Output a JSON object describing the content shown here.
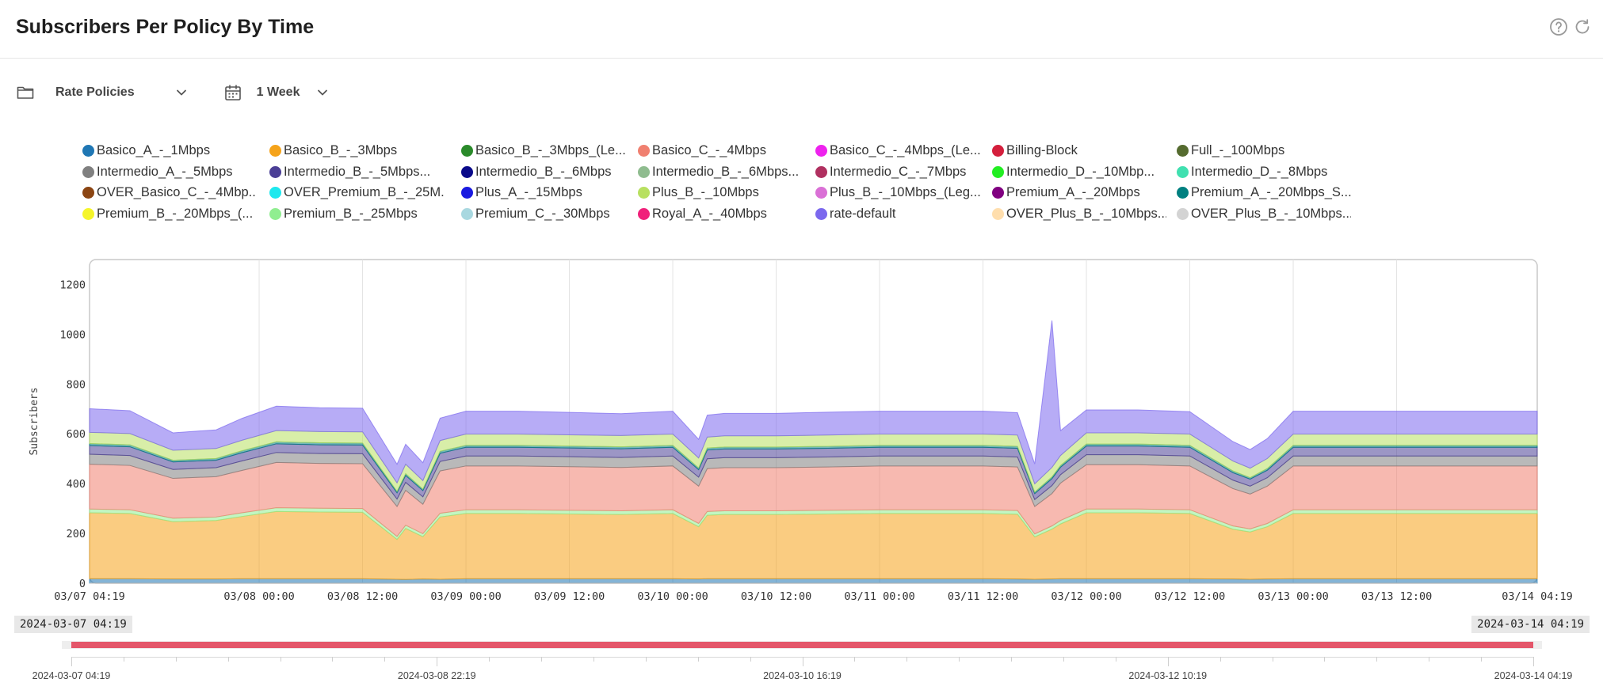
{
  "header": {
    "title": "Subscribers Per Policy By Time",
    "help_icon": "help-circle-icon",
    "refresh_icon": "refresh-icon"
  },
  "toolbar": {
    "group_icon": "folder-icon",
    "group_label": "Rate Policies",
    "period_icon": "calendar-icon",
    "period_label": "1 Week"
  },
  "legend": [
    {
      "label": "Basico_A_-_1Mbps",
      "color": "#1f77b4"
    },
    {
      "label": "Basico_B_-_3Mbps",
      "color": "#f5a31a"
    },
    {
      "label": "Basico_B_-_3Mbps_(Le...",
      "color": "#2a8a2a"
    },
    {
      "label": "Basico_C_-_4Mbps",
      "color": "#f08070"
    },
    {
      "label": "Basico_C_-_4Mbps_(Le...",
      "color": "#ee22ee"
    },
    {
      "label": "Billing-Block",
      "color": "#d41f3c"
    },
    {
      "label": "Full_-_100Mbps",
      "color": "#556b2f"
    },
    {
      "label": "Intermedio_A_-_5Mbps",
      "color": "#808080"
    },
    {
      "label": "Intermedio_B_-_5Mbps...",
      "color": "#4b3f96"
    },
    {
      "label": "Intermedio_B_-_6Mbps",
      "color": "#0a0a8a"
    },
    {
      "label": "Intermedio_B_-_6Mbps...",
      "color": "#8fbc8f"
    },
    {
      "label": "Intermedio_C_-_7Mbps",
      "color": "#b03060"
    },
    {
      "label": "Intermedio_D_-_10Mbp...",
      "color": "#22ee22"
    },
    {
      "label": "Intermedio_D_-_8Mbps",
      "color": "#40e0b0"
    },
    {
      "label": "OVER_Basico_C_-_4Mbp...",
      "color": "#8b4513"
    },
    {
      "label": "OVER_Premium_B_-_25M...",
      "color": "#1ee8ee"
    },
    {
      "label": "Plus_A_-_15Mbps",
      "color": "#1a1ae0"
    },
    {
      "label": "Plus_B_-_10Mbps",
      "color": "#b8e060"
    },
    {
      "label": "Plus_B_-_10Mbps_(Leg...",
      "color": "#da70d6"
    },
    {
      "label": "Premium_A_-_20Mbps",
      "color": "#800080"
    },
    {
      "label": "Premium_A_-_20Mbps_S...",
      "color": "#008080"
    },
    {
      "label": "Premium_B_-_20Mbps_(...",
      "color": "#f5f52a"
    },
    {
      "label": "Premium_B_-_25Mbps",
      "color": "#90ee90"
    },
    {
      "label": "Premium_C_-_30Mbps",
      "color": "#a8d8e0"
    },
    {
      "label": "Royal_A_-_40Mbps",
      "color": "#f0207a"
    },
    {
      "label": "rate-default",
      "color": "#7b68ee"
    },
    {
      "label": "OVER_Plus_B_-_10Mbps...",
      "color": "#ffdead"
    },
    {
      "label": "OVER_Plus_B_-_10Mbps...",
      "color": "#d3d3d3"
    }
  ],
  "chart_data": {
    "type": "area",
    "stacked": true,
    "ylabel": "Subscribers",
    "ylim": [
      0,
      1300
    ],
    "yticks": [
      0,
      200,
      400,
      600,
      800,
      1000,
      1200
    ],
    "xlim": [
      "2024-03-07 04:19",
      "2024-03-14 04:19"
    ],
    "xticks": [
      "03/07 04:19",
      "03/08 00:00",
      "03/08 12:00",
      "03/09 00:00",
      "03/09 12:00",
      "03/10 00:00",
      "03/10 12:00",
      "03/11 00:00",
      "03/11 12:00",
      "03/12 00:00",
      "03/12 12:00",
      "03/13 00:00",
      "03/13 12:00",
      "03/14 04:19"
    ],
    "grid": true,
    "x": [
      "2024-03-07 04:19",
      "2024-03-07 09:00",
      "2024-03-07 14:00",
      "2024-03-07 19:00",
      "2024-03-07 22:00",
      "2024-03-08 02:00",
      "2024-03-08 07:00",
      "2024-03-08 12:00",
      "2024-03-08 16:00",
      "2024-03-08 17:00",
      "2024-03-08 19:00",
      "2024-03-08 21:00",
      "2024-03-09 00:00",
      "2024-03-09 06:00",
      "2024-03-09 12:00",
      "2024-03-09 18:00",
      "2024-03-10 00:00",
      "2024-03-10 03:00",
      "2024-03-10 04:00",
      "2024-03-10 06:00",
      "2024-03-10 12:00",
      "2024-03-10 18:00",
      "2024-03-11 00:00",
      "2024-03-11 06:00",
      "2024-03-11 12:00",
      "2024-03-11 16:00",
      "2024-03-11 18:00",
      "2024-03-11 20:00",
      "2024-03-11 21:00",
      "2024-03-12 00:00",
      "2024-03-12 06:00",
      "2024-03-12 12:00",
      "2024-03-12 17:00",
      "2024-03-12 19:00",
      "2024-03-12 21:00",
      "2024-03-13 00:00",
      "2024-03-13 06:00",
      "2024-03-13 12:00",
      "2024-03-13 18:00",
      "2024-03-14 00:00",
      "2024-03-14 04:19"
    ],
    "series": [
      {
        "name": "Basico_A_-_1Mbps",
        "color": "#1f77b4",
        "values": [
          18,
          18,
          17,
          17,
          18,
          18,
          18,
          18,
          16,
          15,
          17,
          16,
          18,
          18,
          18,
          18,
          18,
          17,
          18,
          18,
          18,
          18,
          18,
          18,
          18,
          17,
          16,
          17,
          18,
          18,
          18,
          18,
          17,
          16,
          17,
          18,
          18,
          18,
          18,
          18,
          18
        ]
      },
      {
        "name": "Basico_B_-_3Mbps",
        "color": "#f5a31a",
        "values": [
          265,
          262,
          230,
          235,
          250,
          270,
          268,
          267,
          160,
          205,
          170,
          250,
          262,
          262,
          260,
          258,
          262,
          210,
          255,
          258,
          258,
          260,
          262,
          262,
          262,
          260,
          170,
          200,
          220,
          265,
          265,
          262,
          200,
          190,
          210,
          262,
          262,
          262,
          262,
          262,
          262
        ]
      },
      {
        "name": "Premium_B_-_25Mbps",
        "color": "#90ee90",
        "values": [
          15,
          15,
          14,
          14,
          15,
          15,
          15,
          15,
          12,
          13,
          12,
          15,
          15,
          15,
          15,
          15,
          15,
          13,
          15,
          15,
          15,
          15,
          15,
          15,
          15,
          15,
          12,
          13,
          14,
          15,
          15,
          15,
          13,
          12,
          13,
          15,
          15,
          15,
          15,
          15,
          15
        ]
      },
      {
        "name": "Basico_C_-_4Mbps",
        "color": "#f08070",
        "values": [
          180,
          178,
          160,
          162,
          170,
          182,
          180,
          180,
          120,
          140,
          118,
          170,
          176,
          176,
          175,
          174,
          176,
          150,
          172,
          173,
          173,
          174,
          176,
          176,
          176,
          175,
          110,
          130,
          150,
          178,
          178,
          176,
          150,
          140,
          150,
          176,
          176,
          176,
          176,
          176,
          176
        ]
      },
      {
        "name": "Intermedio_A_-_5Mbps",
        "color": "#808080",
        "values": [
          40,
          40,
          36,
          36,
          38,
          40,
          40,
          40,
          30,
          32,
          30,
          38,
          40,
          40,
          40,
          40,
          40,
          36,
          40,
          40,
          40,
          40,
          40,
          40,
          40,
          40,
          28,
          32,
          34,
          40,
          40,
          40,
          34,
          32,
          34,
          40,
          40,
          40,
          40,
          40,
          40
        ]
      },
      {
        "name": "Intermedio_B_-_5Mbps...",
        "color": "#4b3f96",
        "values": [
          35,
          35,
          30,
          30,
          33,
          35,
          35,
          35,
          25,
          28,
          25,
          33,
          35,
          35,
          35,
          35,
          35,
          30,
          35,
          35,
          35,
          35,
          35,
          35,
          35,
          35,
          24,
          28,
          30,
          35,
          35,
          35,
          30,
          28,
          30,
          35,
          35,
          35,
          35,
          35,
          35
        ]
      },
      {
        "name": "Premium_A_-_20Mbps_S...",
        "color": "#008080",
        "values": [
          8,
          8,
          7,
          7,
          8,
          8,
          8,
          8,
          6,
          7,
          6,
          8,
          8,
          8,
          8,
          8,
          8,
          7,
          8,
          8,
          8,
          8,
          8,
          8,
          8,
          8,
          6,
          7,
          7,
          8,
          8,
          8,
          7,
          6,
          7,
          8,
          8,
          8,
          8,
          8,
          8
        ]
      },
      {
        "name": "Plus_B_-_10Mbps",
        "color": "#b8e060",
        "values": [
          45,
          45,
          40,
          40,
          42,
          45,
          45,
          45,
          34,
          38,
          34,
          43,
          45,
          45,
          45,
          45,
          45,
          40,
          44,
          45,
          45,
          45,
          45,
          45,
          45,
          45,
          33,
          38,
          40,
          45,
          45,
          45,
          40,
          38,
          40,
          45,
          45,
          45,
          45,
          45,
          45
        ]
      },
      {
        "name": "rate-default",
        "color": "#7b68ee",
        "values": [
          95,
          92,
          70,
          75,
          88,
          98,
          96,
          95,
          75,
          80,
          72,
          90,
          92,
          92,
          90,
          88,
          92,
          75,
          88,
          90,
          90,
          92,
          92,
          92,
          92,
          90,
          80,
          590,
          100,
          92,
          92,
          90,
          78,
          75,
          80,
          92,
          92,
          92,
          92,
          92,
          92
        ]
      }
    ]
  },
  "range_selector": {
    "start_label": "2024-03-07 04:19",
    "end_label": "2024-03-14 04:19",
    "axis_labels": [
      "2024-03-07 04:19",
      "2024-03-08 22:19",
      "2024-03-10 16:19",
      "2024-03-12 10:19",
      "2024-03-14 04:19"
    ]
  }
}
